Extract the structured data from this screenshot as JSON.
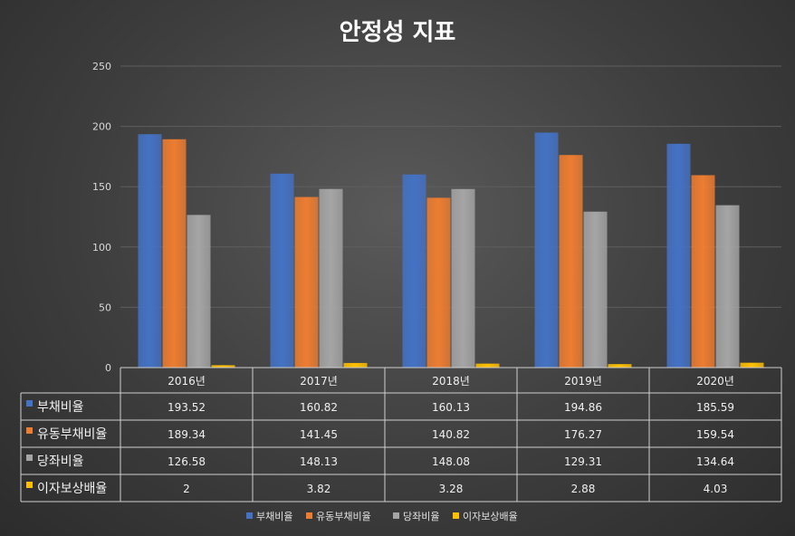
{
  "chart_data": {
    "type": "bar",
    "title": "안정성 지표",
    "categories": [
      "2016년",
      "2017년",
      "2018년",
      "2019년",
      "2020년"
    ],
    "series": [
      {
        "name": "부채비율",
        "color": "#4472c4",
        "values": [
          193.52,
          160.82,
          160.13,
          194.86,
          185.59
        ],
        "labels": [
          "193.52",
          "160.82",
          "160.13",
          "194.86",
          "185.59"
        ]
      },
      {
        "name": "유동부채비율",
        "color": "#ed7d31",
        "values": [
          189.34,
          141.45,
          140.82,
          176.27,
          159.54
        ],
        "labels": [
          "189.34",
          "141.45",
          "140.82",
          "176.27",
          "159.54"
        ]
      },
      {
        "name": "당좌비율",
        "color": "#a5a5a5",
        "values": [
          126.58,
          148.13,
          148.08,
          129.31,
          134.64
        ],
        "labels": [
          "126.58",
          "148.13",
          "148.08",
          "129.31",
          "134.64"
        ]
      },
      {
        "name": "이자보상배율",
        "color": "#ffc000",
        "values": [
          2,
          3.82,
          3.28,
          2.88,
          4.03
        ],
        "labels": [
          "2",
          "3.82",
          "3.28",
          "2.88",
          "4.03"
        ]
      }
    ],
    "ylim": [
      0,
      250
    ],
    "yticks": [
      "0",
      "50",
      "100",
      "150",
      "200",
      "250"
    ],
    "grid": true,
    "data_table": true,
    "legend": "bottom"
  }
}
